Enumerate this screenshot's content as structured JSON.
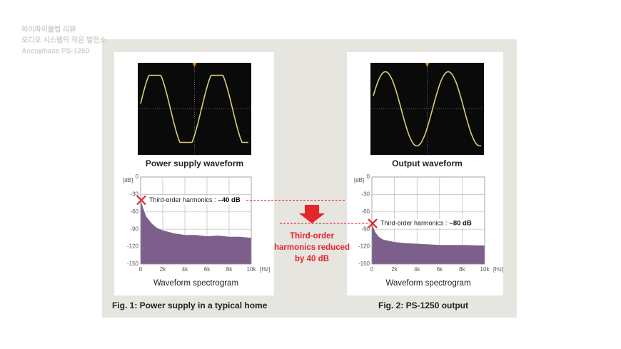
{
  "header": {
    "lines": [
      "하이파이클럽 리뷰",
      "오디오 시스템의 작은 발전소",
      "Accuphase PS-1250"
    ]
  },
  "chart_data": [
    {
      "type": "area",
      "scope_label": "Power supply waveform",
      "xlabel": "Waveform spectrogram",
      "caption": "Fig. 1: Power supply in a typical home",
      "y_unit": "[dB]",
      "x_unit": "[Hz]",
      "x": [
        0,
        250,
        500,
        1000,
        1500,
        2000,
        3000,
        4000,
        5000,
        6000,
        7000,
        8000,
        9000,
        10000
      ],
      "series": [
        {
          "color": "#7d5f8c",
          "values": [
            -40,
            -55,
            -68,
            -80,
            -88,
            -92,
            -97,
            -100,
            -100,
            -102,
            -101,
            -103,
            -103,
            -105
          ]
        }
      ],
      "xlim": [
        0,
        10000
      ],
      "ylim": [
        -150,
        0
      ],
      "xticks": [
        0,
        {
          "value": 2000,
          "label": "2k"
        },
        {
          "value": 4000,
          "label": "4k"
        },
        {
          "value": 6000,
          "label": "6k"
        },
        {
          "value": 8000,
          "label": "8k"
        },
        {
          "value": 10000,
          "label": "10k"
        }
      ],
      "yticks": [
        0,
        -30,
        -60,
        -90,
        -120,
        -150
      ],
      "grid": true,
      "annotation": {
        "text": "Third-order harmonics :",
        "value": -40,
        "value_label": "–40 dB"
      }
    },
    {
      "type": "area",
      "scope_label": "Output waveform",
      "xlabel": "Waveform spectrogram",
      "caption": "Fig. 2: PS-1250 output",
      "y_unit": "[dB]",
      "x_unit": "[Hz]",
      "x": [
        0,
        150,
        300,
        600,
        1000,
        2000,
        3000,
        4000,
        6000,
        8000,
        10000
      ],
      "series": [
        {
          "color": "#7d5f8c",
          "values": [
            -80,
            -88,
            -95,
            -103,
            -108,
            -112,
            -114,
            -115,
            -117,
            -117,
            -118
          ]
        }
      ],
      "xlim": [
        0,
        10000
      ],
      "ylim": [
        -150,
        0
      ],
      "xticks": [
        0,
        {
          "value": 2000,
          "label": "2k"
        },
        {
          "value": 4000,
          "label": "4k"
        },
        {
          "value": 6000,
          "label": "6k"
        },
        {
          "value": 8000,
          "label": "8k"
        },
        {
          "value": 10000,
          "label": "10k"
        }
      ],
      "yticks": [
        0,
        -30,
        -60,
        -90,
        -120,
        -150
      ],
      "grid": true,
      "annotation": {
        "text": "Third-order harmonics :",
        "value": -80,
        "value_label": "–80 dB"
      }
    }
  ],
  "middle_note": {
    "lines": [
      "Third-order",
      "harmonics reduced",
      "by 40 dB"
    ]
  }
}
